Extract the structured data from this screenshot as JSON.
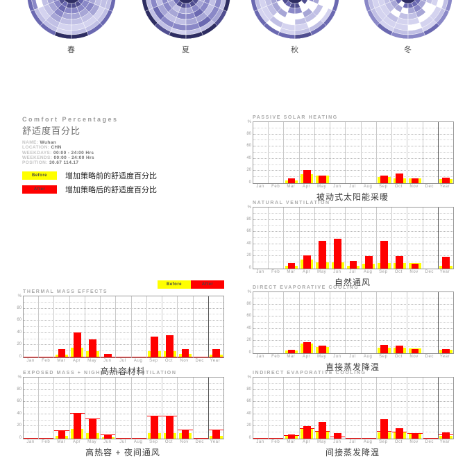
{
  "colors": {
    "before": "#ffff00",
    "after": "#ff0000",
    "background": "#ffffff"
  },
  "seasons": {
    "palette": {
      "a": "#2e2d62",
      "b": "#504e90",
      "c": "#6b69b1",
      "d": "#8a88c7",
      "e": "#a7a6d6",
      "f": "#c1c0e5",
      "g": "#d4d3ef",
      "w": "#ffffff"
    },
    "items": [
      {
        "label": "春",
        "rings": [
          [
            0,
            13,
            "a"
          ],
          [
            13,
            20,
            "bbcbbbcbbbbbbbbb"
          ],
          [
            20,
            28,
            "ddcddddddddddddd"
          ],
          [
            28,
            36,
            "eedeeedeeeeeeeee"
          ],
          [
            36,
            44,
            "ffefffeffgffffff"
          ],
          [
            44,
            52,
            "wgfggggfgggggggg"
          ],
          [
            52,
            58,
            "dffgffffgfffffff"
          ],
          [
            58,
            64,
            "cccaaccccccccccc"
          ]
        ]
      },
      {
        "label": "夏",
        "rings": [
          [
            0,
            13,
            "a"
          ],
          [
            13,
            20,
            "bcbbcbbbbbbbbbbb"
          ],
          [
            20,
            28,
            "eefeedeeeeeeeeee"
          ],
          [
            28,
            36,
            "ddeddcdddddddddd"
          ],
          [
            36,
            44,
            "feffeeffffffffff"
          ],
          [
            44,
            52,
            "dcdddcddcddddddd"
          ],
          [
            52,
            58,
            "fffgffefffffffff"
          ],
          [
            58,
            64,
            "aabaaabaaaaaaaaa"
          ]
        ]
      },
      {
        "label": "秋",
        "rings": [
          [
            0,
            13,
            "a"
          ],
          [
            13,
            20,
            "bbcbbwbbbbbbbbbb"
          ],
          [
            20,
            28,
            "dwwddwwddddddddd"
          ],
          [
            28,
            36,
            "eeewweweeeeeeeee"
          ],
          [
            36,
            44,
            "ffwwfffwffffffff"
          ],
          [
            44,
            52,
            "ggfggwwwgggggggg"
          ],
          [
            52,
            58,
            "fgwgffgwffffffff"
          ],
          [
            58,
            64,
            "ccccbccccccccccc"
          ]
        ]
      },
      {
        "label": "冬",
        "rings": [
          [
            0,
            13,
            "a"
          ],
          [
            13,
            20,
            "ccwccccccccccccc"
          ],
          [
            20,
            28,
            "eeewedeeweeeeeee"
          ],
          [
            28,
            36,
            "ffwffewffeffffff"
          ],
          [
            36,
            44,
            "ggfggwwggggggggg"
          ],
          [
            44,
            52,
            "ggggwggwgggggggg"
          ],
          [
            52,
            58,
            "ffgffgffwfffffff"
          ],
          [
            58,
            64,
            "ddcddcdddddddddd"
          ]
        ]
      }
    ]
  },
  "info_panel": {
    "title_en": "Comfort Percentages",
    "title_zh": "舒适度百分比",
    "fields": [
      {
        "label": "NAME:",
        "value": "Wuhan"
      },
      {
        "label": "LOCATION:",
        "value": "CHN"
      },
      {
        "label": "WEEKDAYS:",
        "value": "00:00 - 24:00 Hrs"
      },
      {
        "label": "WEEKENDS:",
        "value": "00:00 - 24:00 Hrs"
      },
      {
        "label": "POSITION:",
        "value": "30.67 114.17"
      }
    ],
    "legend": [
      {
        "swatch_label": "Before",
        "color": "#ffff00",
        "text": "增加策略前的舒适度百分比"
      },
      {
        "swatch_label": "After",
        "color": "#ff0000",
        "text": "增加策略后的舒适度百分比"
      }
    ]
  },
  "chart_data": [
    {
      "type": "bar",
      "id": "passive-solar-heating",
      "title": "PASSIVE SOLAR HEATING",
      "caption_zh": "被动式太阳能采暖",
      "ylabel": "%",
      "ylim": [
        0,
        100
      ],
      "yticks": [
        0,
        20,
        40,
        60,
        80
      ],
      "categories": [
        "Jan",
        "Feb",
        "Mar",
        "Apr",
        "May",
        "Jun",
        "Jul",
        "Aug",
        "Sep",
        "Oct",
        "Nov",
        "Dec",
        "Year"
      ],
      "series": [
        {
          "name": "Before",
          "color": "#ffff00",
          "values": [
            0,
            0,
            5,
            15,
            12,
            0,
            0,
            0,
            10,
            8,
            8,
            0,
            7
          ]
        },
        {
          "name": "After",
          "color": "#ff0000",
          "values": [
            0,
            0,
            8,
            22,
            13,
            0,
            0,
            0,
            12,
            16,
            8,
            0,
            9
          ]
        }
      ],
      "line_values": null
    },
    {
      "type": "bar",
      "id": "natural-ventilation",
      "title": "NATURAL VENTILATION",
      "caption_zh": "自然通风",
      "ylabel": "%",
      "ylim": [
        0,
        100
      ],
      "yticks": [
        0,
        20,
        40,
        60,
        80
      ],
      "categories": [
        "Jan",
        "Feb",
        "Mar",
        "Apr",
        "May",
        "Jun",
        "Jul",
        "Aug",
        "Sep",
        "Oct",
        "Nov",
        "Dec",
        "Year"
      ],
      "series": [
        {
          "name": "Before",
          "color": "#ffff00",
          "values": [
            0,
            0,
            4,
            15,
            10,
            10,
            4,
            8,
            9,
            9,
            9,
            0,
            4
          ]
        },
        {
          "name": "After",
          "color": "#ff0000",
          "values": [
            0,
            0,
            9,
            22,
            45,
            49,
            13,
            20,
            45,
            21,
            8,
            0,
            19
          ]
        }
      ],
      "line_values": null
    },
    {
      "type": "bar",
      "id": "direct-evaporative-cooling",
      "title": "DIRECT EVAPORATIVE COOLING",
      "caption_zh": "直接蒸发降温",
      "ylabel": "%",
      "ylim": [
        0,
        100
      ],
      "yticks": [
        0,
        20,
        40,
        60,
        80
      ],
      "categories": [
        "Jan",
        "Feb",
        "Mar",
        "Apr",
        "May",
        "Jun",
        "Jul",
        "Aug",
        "Sep",
        "Oct",
        "Nov",
        "Dec",
        "Year"
      ],
      "series": [
        {
          "name": "Before",
          "color": "#ffff00",
          "values": [
            0,
            0,
            4,
            16,
            10,
            0,
            0,
            0,
            9,
            9,
            8,
            0,
            6
          ]
        },
        {
          "name": "After",
          "color": "#ff0000",
          "values": [
            0,
            0,
            6,
            18,
            12,
            0,
            0,
            0,
            14,
            12,
            7,
            0,
            7
          ]
        }
      ],
      "line_values": null
    },
    {
      "type": "bar",
      "id": "indirect-evaporative-cooling",
      "title": "INDIRECT EVAPORATIVE COOLING",
      "caption_zh": "间接蒸发降温",
      "ylabel": "%",
      "ylim": [
        0,
        100
      ],
      "yticks": [
        0,
        20,
        40,
        60,
        80
      ],
      "categories": [
        "Jan",
        "Feb",
        "Mar",
        "Apr",
        "May",
        "Jun",
        "Jul",
        "Aug",
        "Sep",
        "Oct",
        "Nov",
        "Dec",
        "Year"
      ],
      "series": [
        {
          "name": "Before",
          "color": "#ffff00",
          "values": [
            0,
            0,
            5,
            16,
            11,
            0,
            0,
            0,
            10,
            10,
            8,
            0,
            5
          ]
        },
        {
          "name": "After",
          "color": "#ff0000",
          "values": [
            0,
            0,
            7,
            21,
            27,
            9,
            0,
            0,
            32,
            17,
            9,
            0,
            10
          ]
        }
      ],
      "line_values": [
        1,
        1,
        6,
        17,
        12,
        3,
        1,
        1,
        12,
        11,
        9,
        1,
        7
      ]
    },
    {
      "type": "bar",
      "id": "thermal-mass-effects",
      "title": "THERMAL MASS EFFECTS",
      "caption_zh": "高热容材料",
      "ylabel": "%",
      "ylim": [
        0,
        100
      ],
      "yticks": [
        0,
        20,
        40,
        60,
        80
      ],
      "categories": [
        "Jan",
        "Feb",
        "Mar",
        "Apr",
        "May",
        "Jun",
        "Jul",
        "Aug",
        "Sep",
        "Oct",
        "Nov",
        "Dec",
        "Year"
      ],
      "series": [
        {
          "name": "Before",
          "color": "#ffff00",
          "values": [
            0,
            0,
            4,
            16,
            10,
            0,
            0,
            0,
            10,
            10,
            6,
            0,
            4
          ]
        },
        {
          "name": "After",
          "color": "#ff0000",
          "values": [
            0,
            0,
            14,
            41,
            30,
            6,
            0,
            0,
            34,
            36,
            14,
            0,
            14
          ]
        }
      ],
      "line_values": [
        1,
        1,
        1,
        1,
        1,
        1,
        1,
        1,
        1,
        1,
        1,
        1,
        1
      ],
      "legend": [
        {
          "label": "Before",
          "color": "#ffff00"
        },
        {
          "label": "After",
          "color": "#ff0000"
        }
      ]
    },
    {
      "type": "bar",
      "id": "exposed-mass-night-purge-ventilation",
      "title": "EXPOSED MASS + NIGHT-PURGE VENTILATION",
      "caption_zh": "高热容 + 夜间通风",
      "ylabel": "%",
      "ylim": [
        0,
        100
      ],
      "yticks": [
        0,
        20,
        40,
        60,
        80
      ],
      "categories": [
        "Jan",
        "Feb",
        "Mar",
        "Apr",
        "May",
        "Jun",
        "Jul",
        "Aug",
        "Sep",
        "Oct",
        "Nov",
        "Dec",
        "Year"
      ],
      "series": [
        {
          "name": "Before",
          "color": "#ffff00",
          "values": [
            0,
            0,
            4,
            16,
            9,
            2,
            0,
            0,
            9,
            9,
            9,
            0,
            5
          ]
        },
        {
          "name": "After",
          "color": "#ff0000",
          "values": [
            0,
            0,
            14,
            42,
            33,
            7,
            0,
            0,
            37,
            37,
            15,
            0,
            15
          ]
        }
      ],
      "line_values": [
        1,
        1,
        14,
        42,
        33,
        7,
        1,
        1,
        37,
        37,
        15,
        1,
        15
      ]
    }
  ]
}
